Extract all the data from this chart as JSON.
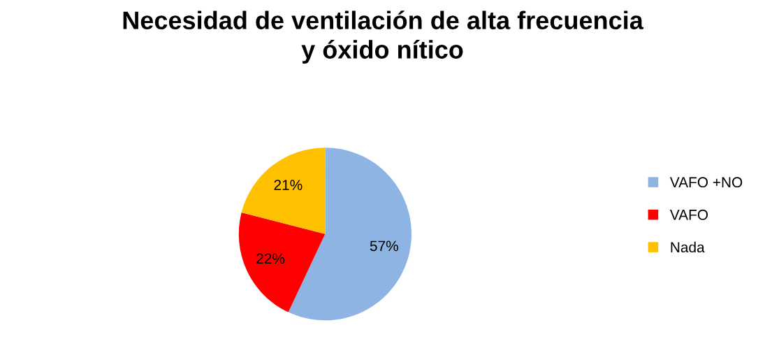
{
  "chart_data": {
    "type": "pie",
    "title": "Necesidad de ventilación de alta frecuencia\ny óxido nítico",
    "categories": [
      "VAFO +NO",
      "VAFO",
      "Nada"
    ],
    "values": [
      57,
      22,
      21
    ],
    "value_labels": [
      "57%",
      "22%",
      "21%"
    ],
    "colors": [
      "#8eb4e3",
      "#ff0000",
      "#ffc000"
    ],
    "legend": "right"
  }
}
